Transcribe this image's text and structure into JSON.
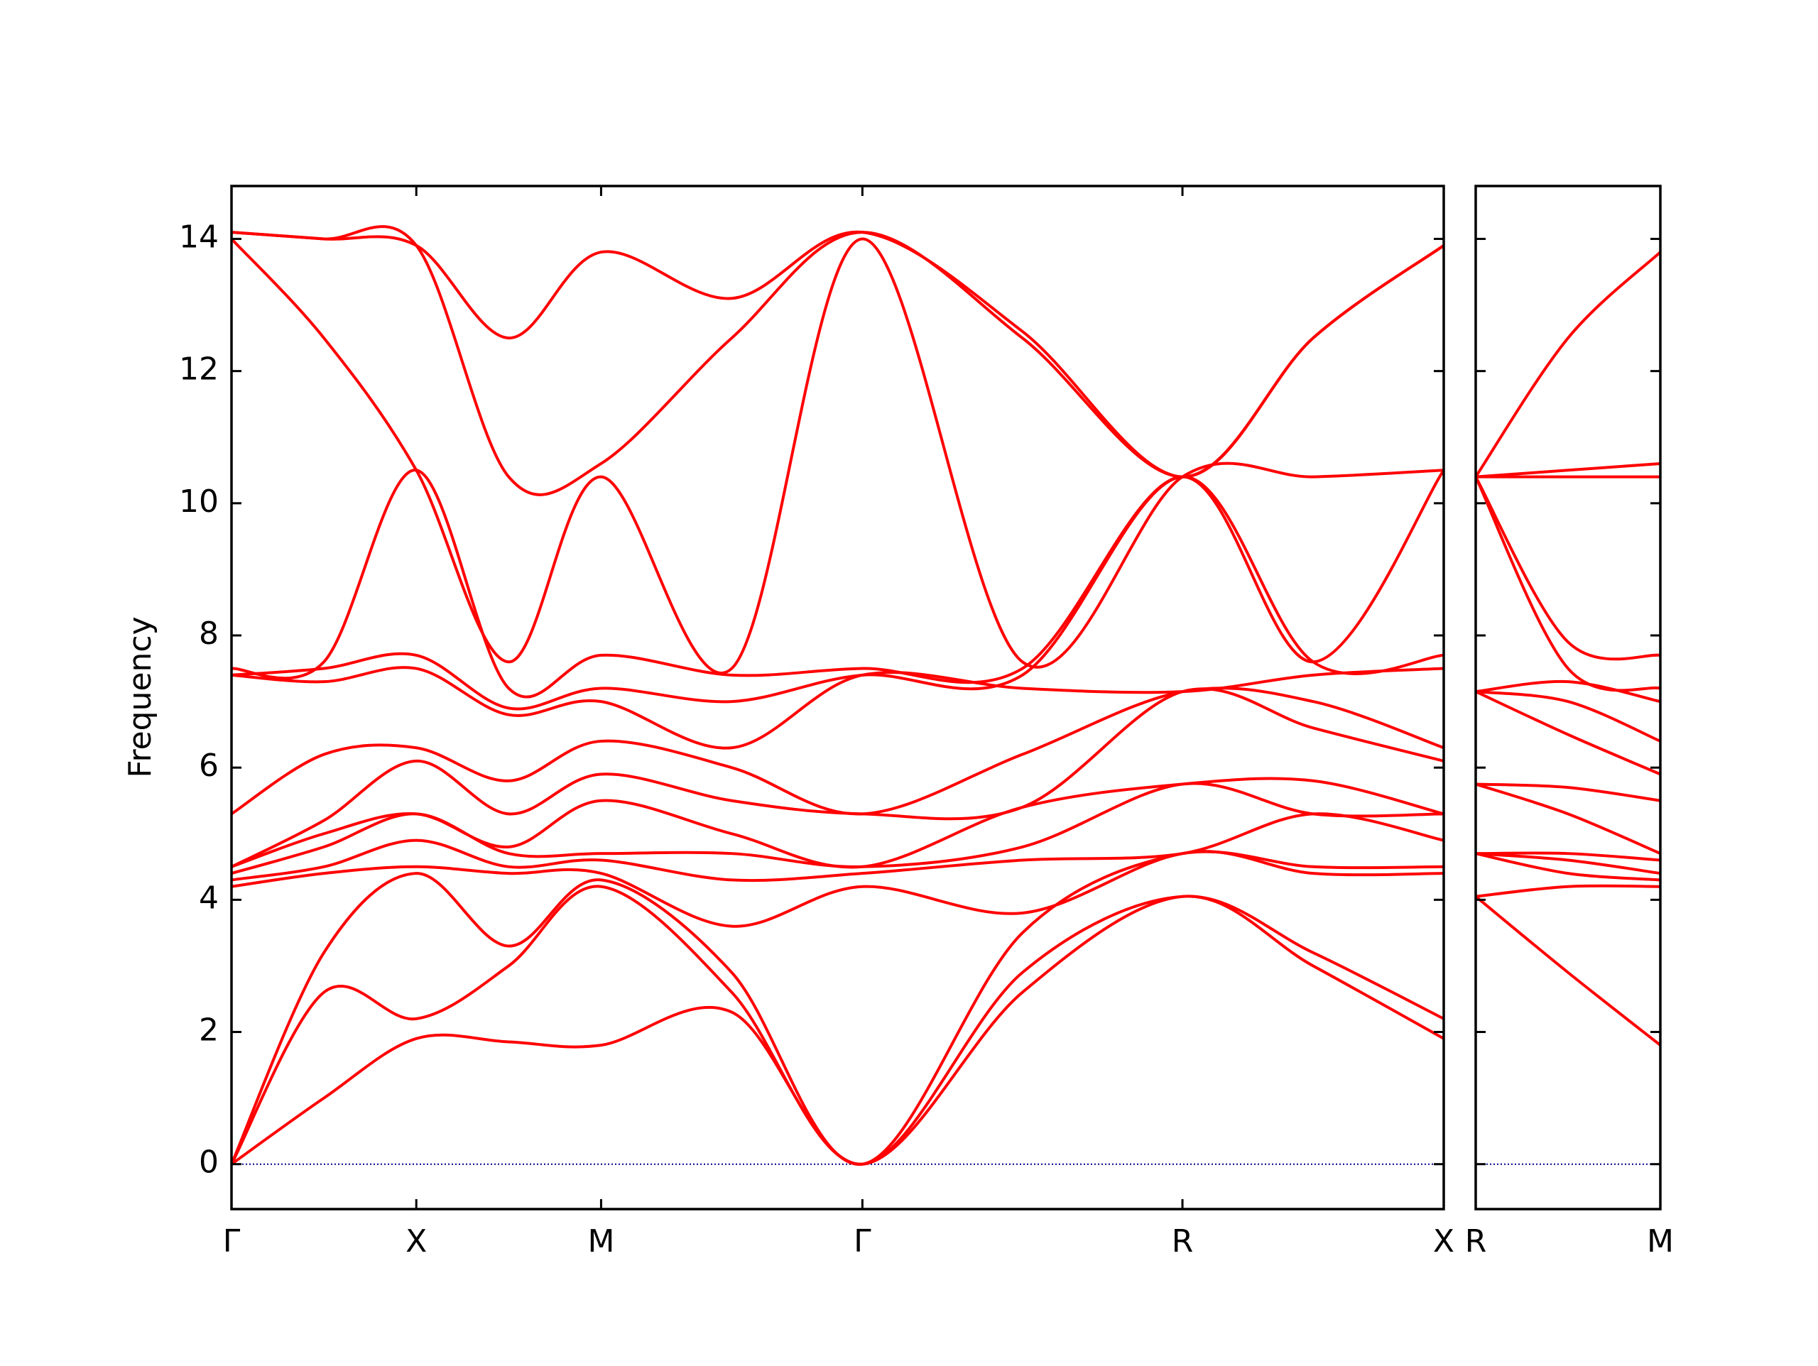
{
  "chart_data": [
    {
      "type": "line",
      "y_label": "Frequency",
      "color": "#ff0000",
      "line_style": "smooth",
      "ylim": [
        -0.68,
        14.8
      ],
      "yticks": [
        0,
        2,
        4,
        6,
        8,
        10,
        12,
        14
      ],
      "zero_line": {
        "value": 0,
        "color": "#00008b"
      },
      "xlim": [
        0,
        6.56
      ],
      "xticks": [
        {
          "value": 0,
          "label": "Γ"
        },
        {
          "value": 1,
          "label": "X"
        },
        {
          "value": 2,
          "label": "M"
        },
        {
          "value": 3.414,
          "label": "Γ"
        },
        {
          "value": 5.146,
          "label": "R"
        },
        {
          "value": 6.56,
          "label": "X"
        }
      ],
      "x": [
        0,
        0.5,
        1,
        1.5,
        2,
        2.707,
        3.414,
        4.28,
        5.146,
        5.853,
        6.56
      ],
      "series": [
        {
          "values": [
            0,
            1.0,
            1.9,
            1.85,
            1.8,
            2.3,
            0,
            2.6,
            4.05,
            3.0,
            1.9
          ]
        },
        {
          "values": [
            0,
            2.6,
            2.2,
            3.0,
            4.2,
            2.6,
            0,
            2.9,
            4.05,
            3.2,
            2.2
          ]
        },
        {
          "values": [
            0,
            3.2,
            4.4,
            3.3,
            4.3,
            2.9,
            0,
            3.5,
            4.7,
            4.4,
            4.4
          ]
        },
        {
          "values": [
            4.2,
            4.4,
            4.5,
            4.4,
            4.4,
            3.6,
            4.2,
            3.8,
            4.7,
            4.5,
            4.5
          ]
        },
        {
          "values": [
            4.3,
            4.5,
            4.9,
            4.5,
            4.6,
            4.3,
            4.4,
            4.6,
            4.7,
            5.3,
            4.9
          ]
        },
        {
          "values": [
            4.4,
            4.8,
            5.3,
            4.7,
            4.7,
            4.7,
            4.5,
            4.8,
            5.75,
            5.3,
            5.3
          ]
        },
        {
          "values": [
            4.5,
            5.0,
            5.3,
            4.8,
            5.5,
            5.0,
            4.5,
            5.4,
            5.75,
            5.8,
            5.3
          ]
        },
        {
          "values": [
            4.5,
            5.2,
            6.1,
            5.3,
            5.9,
            5.5,
            5.3,
            5.4,
            7.15,
            6.6,
            6.1
          ]
        },
        {
          "values": [
            5.3,
            6.2,
            6.3,
            5.8,
            6.4,
            6.0,
            5.3,
            6.2,
            7.15,
            7.0,
            6.3
          ]
        },
        {
          "values": [
            7.4,
            7.3,
            7.5,
            6.8,
            7.0,
            6.3,
            7.4,
            7.2,
            7.15,
            7.4,
            7.5
          ]
        },
        {
          "values": [
            7.4,
            7.5,
            7.7,
            6.9,
            7.2,
            7.0,
            7.4,
            7.4,
            10.4,
            7.6,
            7.7
          ]
        },
        {
          "values": [
            7.5,
            7.6,
            10.5,
            7.2,
            7.7,
            7.4,
            7.5,
            7.5,
            10.4,
            7.6,
            10.5
          ]
        },
        {
          "values": [
            14.0,
            12.5,
            10.5,
            7.6,
            10.4,
            7.5,
            14.0,
            7.6,
            10.4,
            10.4,
            10.5
          ]
        },
        {
          "values": [
            14.1,
            14.0,
            13.9,
            10.4,
            10.6,
            12.5,
            14.1,
            12.5,
            10.4,
            12.5,
            13.9
          ]
        },
        {
          "values": [
            14.1,
            14.0,
            13.9,
            12.5,
            13.8,
            13.1,
            14.1,
            12.6,
            10.4,
            12.5,
            13.9
          ]
        }
      ]
    },
    {
      "type": "line",
      "color": "#ff0000",
      "line_style": "smooth",
      "ylim": [
        -0.68,
        14.8
      ],
      "yticks": [
        0,
        2,
        4,
        6,
        8,
        10,
        12,
        14
      ],
      "zero_line": {
        "value": 0,
        "color": "#00008b"
      },
      "xlim": [
        0,
        1
      ],
      "xticks": [
        {
          "value": 0,
          "label": "R"
        },
        {
          "value": 1,
          "label": "M"
        }
      ],
      "x": [
        0,
        0.5,
        1
      ],
      "series": [
        {
          "values": [
            4.05,
            2.9,
            1.8
          ]
        },
        {
          "values": [
            4.05,
            4.2,
            4.2
          ]
        },
        {
          "values": [
            4.7,
            4.4,
            4.3
          ]
        },
        {
          "values": [
            4.7,
            4.6,
            4.4
          ]
        },
        {
          "values": [
            4.7,
            4.7,
            4.6
          ]
        },
        {
          "values": [
            5.75,
            5.3,
            4.7
          ]
        },
        {
          "values": [
            5.75,
            5.7,
            5.5
          ]
        },
        {
          "values": [
            7.15,
            6.5,
            5.9
          ]
        },
        {
          "values": [
            7.15,
            7.0,
            6.4
          ]
        },
        {
          "values": [
            7.15,
            7.3,
            7.0
          ]
        },
        {
          "values": [
            10.4,
            7.5,
            7.2
          ]
        },
        {
          "values": [
            10.4,
            7.9,
            7.7
          ]
        },
        {
          "values": [
            10.4,
            10.4,
            10.4
          ]
        },
        {
          "values": [
            10.4,
            10.5,
            10.6
          ]
        },
        {
          "values": [
            10.4,
            12.5,
            13.8
          ]
        }
      ]
    }
  ]
}
